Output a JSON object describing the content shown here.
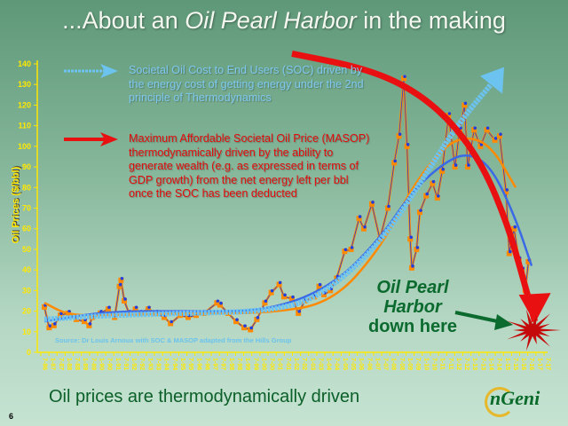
{
  "slide": {
    "title_pre": "...About an ",
    "title_em": "Oil Pearl Harbor",
    "title_post": " in the making",
    "bottom_text": "Oil prices are thermodynamically driven",
    "page_number": "6",
    "logo_text": "nGeni"
  },
  "legend": {
    "soc": "Societal Oil Cost to End Users (SOC) driven by the energy cost of getting energy under the 2nd principle of Thermodynamics",
    "masop": "Maximum Affordable Societal Oil Price (MASOP) thermodynamically driven by the ability to generate wealth (e.g. as expressed in terms of GDP growth) from the net energy left per bbl once the SOC has been deducted"
  },
  "annotation": {
    "pearl_line1": "Oil Pearl",
    "pearl_line2": "Harbor",
    "pearl_line3": "down here",
    "source": "Source: Dr Louis Arnoux with SOC & MASOP adapted from the Hills Group"
  },
  "colors": {
    "price_orange": "#ff8a00",
    "price_blue": "#1f3fe0",
    "soc": "#6cc3f0",
    "masop": "#e81010",
    "axis": "#ffe800",
    "pearl_text": "#0b6a2e",
    "splat": "#c40a0a"
  },
  "chart_data": {
    "type": "line",
    "ylabel": "Oil Prices ($/bbl)",
    "ylim": [
      0,
      140
    ],
    "yticks": [
      "0",
      "10",
      "20",
      "30",
      "40",
      "50",
      "60",
      "70",
      "80",
      "90",
      "100",
      "110",
      "120",
      "130",
      "140"
    ],
    "xlim": [
      1986,
      2017.5
    ],
    "xtick_labels": [
      "7-86",
      "1-87",
      "7-87",
      "1-88",
      "7-88",
      "1-89",
      "7-89",
      "1-90",
      "7-90",
      "1-91",
      "7-91",
      "1-92",
      "7-92",
      "1-93",
      "7-93",
      "1-94",
      "7-94",
      "1-95",
      "7-95",
      "1-96",
      "7-96",
      "1-97",
      "7-97",
      "1-98",
      "7-98",
      "1-99",
      "7-99",
      "1-00",
      "7-00",
      "1-01",
      "7-01",
      "1-02",
      "7-02",
      "1-03",
      "7-03",
      "1-04",
      "7-04",
      "1-05",
      "7-05",
      "1-06",
      "7-06",
      "1-07",
      "7-07",
      "1-08",
      "7-08",
      "1-09",
      "7-09",
      "1-10",
      "7-10",
      "1-11",
      "7-11",
      "1-12",
      "7-12",
      "1-13",
      "7-13",
      "1-14",
      "7-14",
      "1-15",
      "7-15",
      "1-16",
      "7-16",
      "1-17",
      "7-17"
    ],
    "grid": false,
    "series": [
      {
        "key": "price",
        "x": [
          1986.0,
          1986.3,
          1986.6,
          1987,
          1987.5,
          1988,
          1988.5,
          1988.8,
          1989,
          1989.5,
          1990,
          1990.4,
          1990.7,
          1990.8,
          1991,
          1991.3,
          1991.7,
          1992,
          1992.5,
          1993,
          1993.5,
          1993.9,
          1994.5,
          1995,
          1995.5,
          1996,
          1996.8,
          1997,
          1997.5,
          1998,
          1998.5,
          1998.9,
          1999.3,
          1999.8,
          2000.2,
          2000.7,
          2001,
          2001.5,
          2001.9,
          2002.3,
          2002.9,
          2003.2,
          2003.5,
          2003.9,
          2004.3,
          2004.8,
          2005.2,
          2005.7,
          2006,
          2006.5,
          2007,
          2007.5,
          2007.9,
          2008.2,
          2008.5,
          2008.7,
          2008.9,
          2009.0,
          2009.3,
          2009.5,
          2009.9,
          2010.3,
          2010.6,
          2010.9,
          2011.3,
          2011.7,
          2012,
          2012.3,
          2012.5,
          2012.9,
          2013.3,
          2013.7,
          2014.2,
          2014.5,
          2014.9,
          2015.1,
          2015.4,
          2015.7,
          2015.9,
          2016.1,
          2016.3
        ],
        "y": [
          22,
          12,
          13,
          18,
          19,
          16,
          15,
          13,
          17,
          19,
          21,
          17,
          32,
          35,
          25,
          19,
          21,
          19,
          21,
          19,
          17,
          14,
          18,
          17,
          18,
          19,
          24,
          23,
          19,
          15,
          12,
          11,
          16,
          24,
          29,
          33,
          27,
          26,
          19,
          25,
          27,
          32,
          28,
          30,
          36,
          49,
          50,
          65,
          60,
          72,
          55,
          70,
          92,
          105,
          133,
          100,
          55,
          41,
          50,
          68,
          76,
          82,
          75,
          88,
          115,
          90,
          108,
          120,
          90,
          108,
          100,
          108,
          103,
          105,
          78,
          48,
          60,
          45,
          40,
          30,
          44
        ]
      },
      {
        "key": "fit_orange",
        "x": [
          1986,
          1987.5,
          1990,
          1995,
          2000,
          2004,
          2007,
          2009,
          2011,
          2012.5,
          2014,
          2015.5
        ],
        "y": [
          24,
          18,
          18,
          19,
          19,
          24,
          50,
          80,
          100,
          105,
          100,
          80
        ]
      },
      {
        "key": "fit_blue",
        "x": [
          1986,
          1990,
          1995,
          2000,
          2004,
          2007,
          2009,
          2011,
          2012.5,
          2014,
          2015.5,
          2016.5
        ],
        "y": [
          15,
          20,
          20,
          20,
          32,
          55,
          78,
          92,
          97,
          90,
          65,
          42
        ]
      },
      {
        "name": "SOC",
        "key": "soc",
        "x": [
          1986,
          1990,
          1995,
          2000,
          2003,
          2006,
          2008,
          2010,
          2012,
          2014.5
        ],
        "y": [
          16,
          18,
          19,
          20,
          26,
          45,
          64,
          88,
          112,
          135
        ]
      },
      {
        "name": "MASOP",
        "key": "masop",
        "x": [
          2001.5,
          2006,
          2009,
          2011.5,
          2013.5,
          2015,
          2016,
          2016.7
        ],
        "y": [
          145,
          138,
          128,
          112,
          90,
          62,
          35,
          15
        ]
      }
    ]
  }
}
